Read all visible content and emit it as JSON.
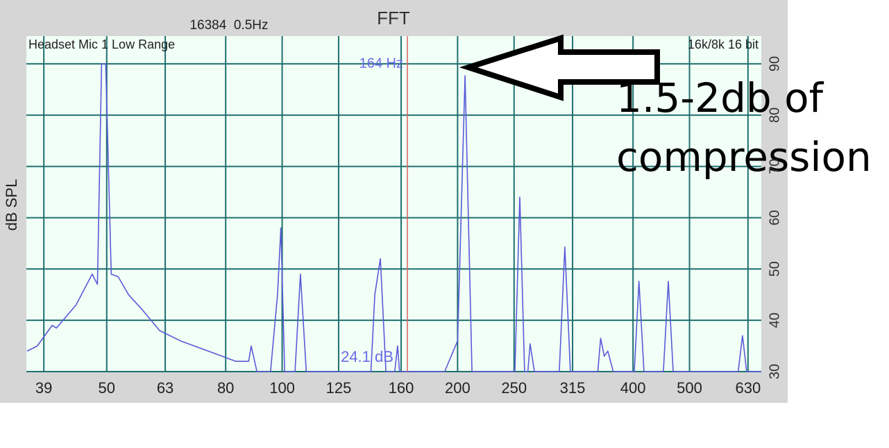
{
  "chart_data": {
    "type": "line",
    "title": "FFT",
    "subtitle": "16384  0.5Hz",
    "top_left_label": "Headset Mic 1 Low Range",
    "top_right_label": "16k/8k 16 bit",
    "y_label": "dB SPL",
    "x_scale": "log",
    "x": [
      36.5,
      38,
      40.3,
      41,
      44.3,
      47.2,
      48.2,
      49,
      49.8,
      50.9,
      52.3,
      54.5,
      57.6,
      61.6,
      66.9,
      74.7,
      83.3,
      87.6,
      88.5,
      90.5,
      95.5,
      98.2,
      99.5,
      101,
      105.2,
      107.5,
      110,
      142,
      144.2,
      147.4,
      150.7,
      156,
      157.8,
      159,
      190,
      200,
      206,
      211.7,
      250.8,
      255.7,
      260.6,
      264,
      266.4,
      270.9,
      298.9,
      305.5,
      312.3,
      348,
      352,
      357,
      362,
      370,
      402,
      409.5,
      417.6,
      451,
      459.8,
      468.7,
      606,
      616.5,
      626.7,
      664
    ],
    "series": [
      {
        "color": "#5a5ad8",
        "values": [
          34,
          35,
          39,
          38.5,
          43,
          49,
          47,
          90,
          90,
          49,
          48.5,
          45,
          42,
          38,
          36,
          34,
          32,
          32,
          35,
          30,
          30,
          45,
          58,
          30,
          30,
          49,
          30,
          30,
          45,
          52,
          30,
          30,
          35,
          30,
          30,
          36,
          87.7,
          30,
          30,
          64,
          30,
          30,
          35.4,
          30,
          30,
          54.3,
          30,
          30,
          36.5,
          33,
          34,
          30,
          30,
          47.6,
          30,
          30,
          47.6,
          30,
          30,
          37,
          30,
          30
        ]
      }
    ],
    "xlim": [
      36.4,
      664
    ],
    "ylim": [
      30,
      95.4
    ],
    "xticks": [
      39,
      50,
      63,
      80,
      100,
      125,
      160,
      200,
      250,
      315,
      400,
      500,
      630
    ],
    "yticks": [
      30,
      40,
      50,
      60,
      70,
      80,
      90
    ],
    "grid": true,
    "grid_color": "#1f6f6f",
    "marker": {
      "x": 164,
      "label": "164 Hz",
      "color": "#e06060"
    },
    "readout": "24.1 dB",
    "annotation": [
      "1.5-2db of",
      "compression"
    ]
  }
}
